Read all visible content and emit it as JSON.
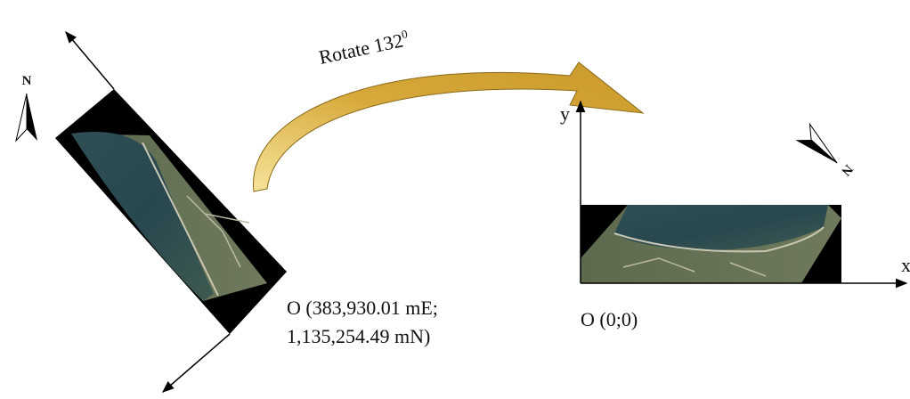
{
  "labels": {
    "rotate": "Rotate 132",
    "degree": "0",
    "north_left": "N",
    "north_right": "N",
    "y_axis": "y",
    "x_axis": "x",
    "origin_left_line1": "O (383,930.01 mE;",
    "origin_left_line2": "1,135,254.49 mN)",
    "origin_right": "O (0;0)"
  }
}
